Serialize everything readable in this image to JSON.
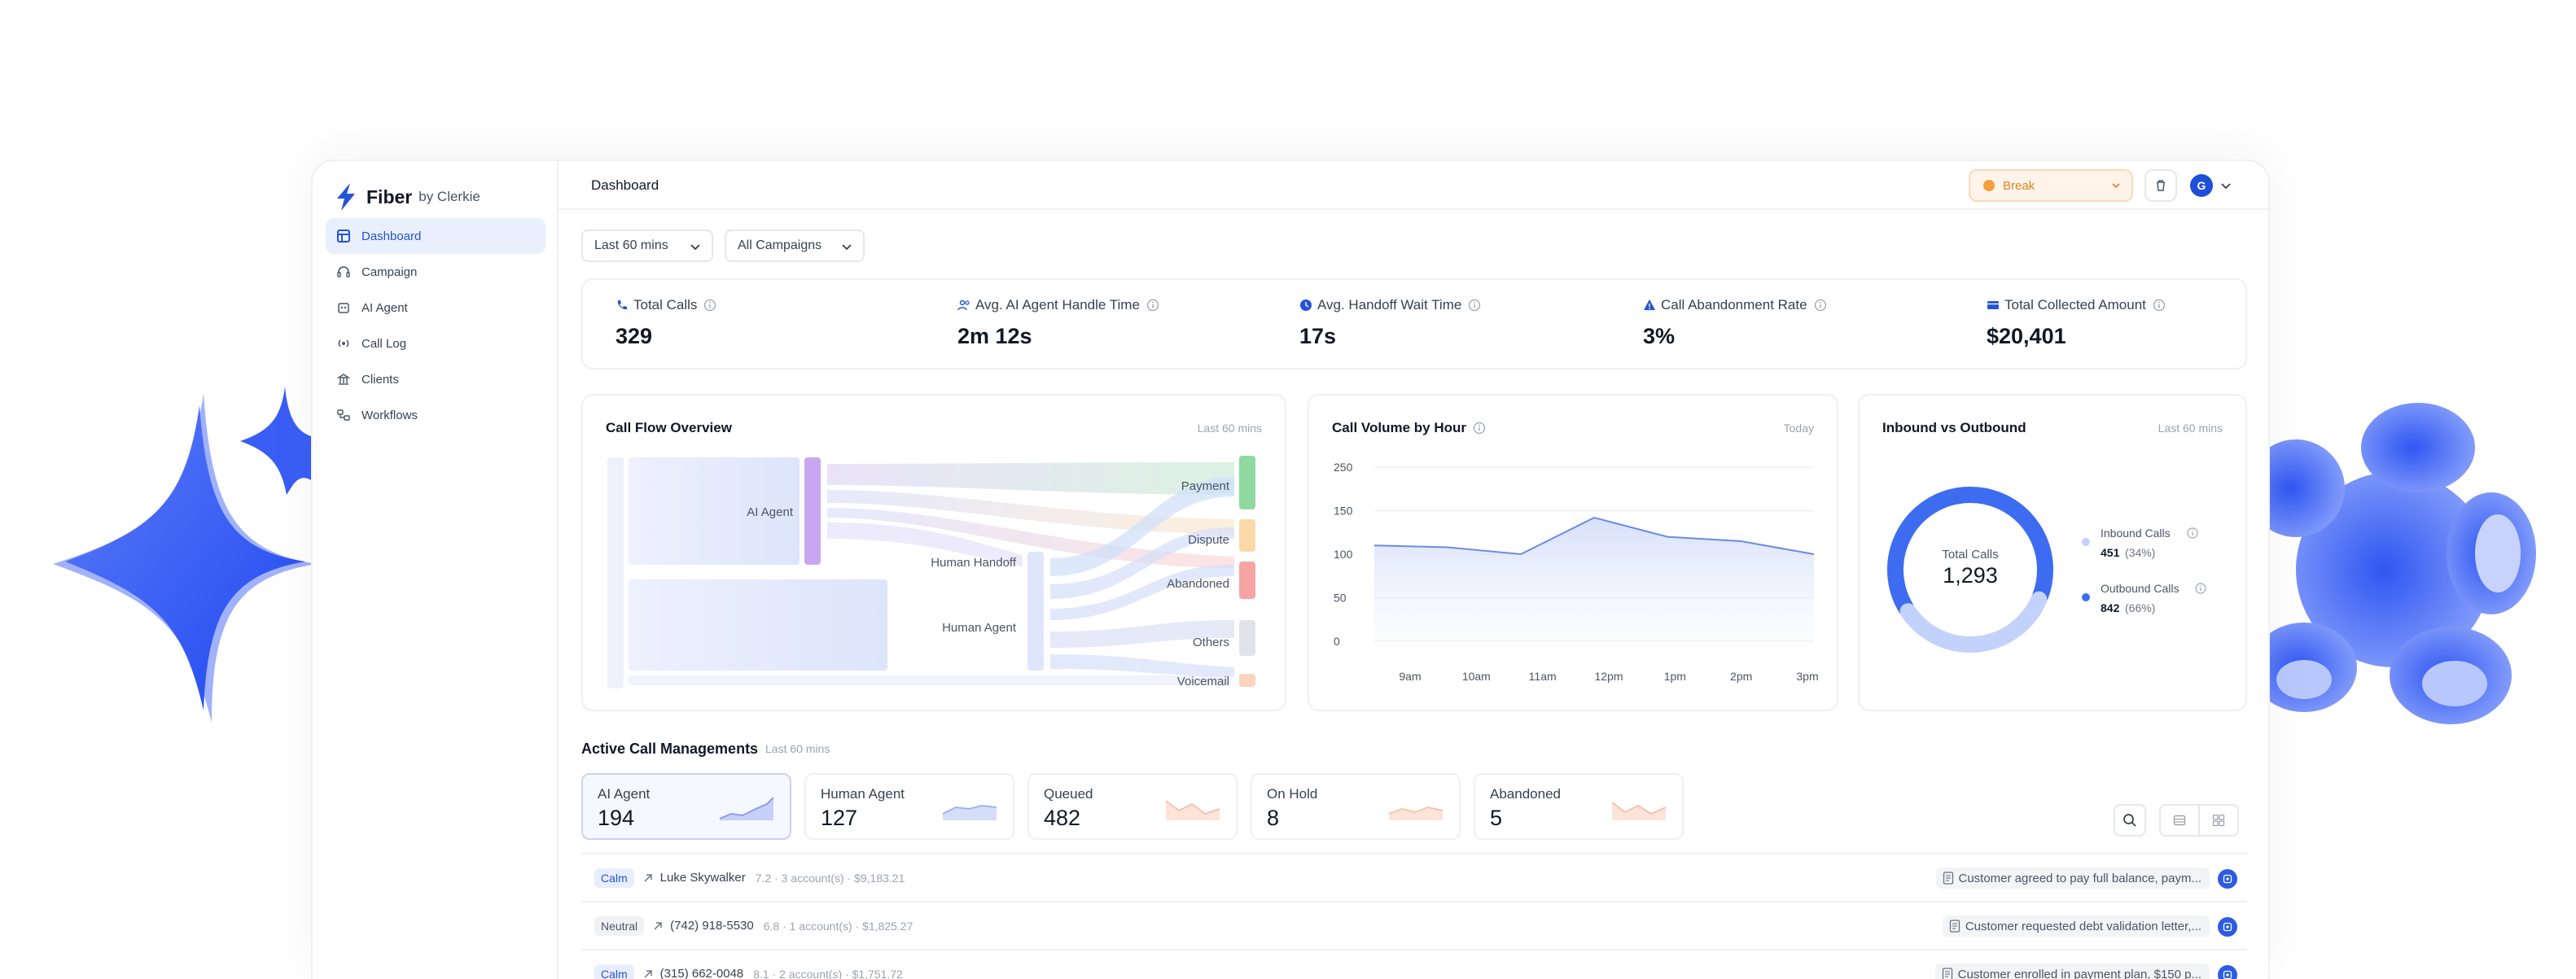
{
  "brand": {
    "name": "Fiber",
    "by": "by Clerkie"
  },
  "sidebar": {
    "items": [
      {
        "label": "Dashboard",
        "icon": "grid-icon",
        "active": true
      },
      {
        "label": "Campaign",
        "icon": "headset-icon"
      },
      {
        "label": "AI Agent",
        "icon": "bot-icon"
      },
      {
        "label": "Call Log",
        "icon": "broadcast-icon"
      },
      {
        "label": "Clients",
        "icon": "building-icon"
      },
      {
        "label": "Workflows",
        "icon": "workflow-icon"
      }
    ]
  },
  "header": {
    "title": "Dashboard",
    "status": "Break",
    "avatar_initial": "G"
  },
  "filters": {
    "time": "Last 60 mins",
    "campaign": "All Campaigns"
  },
  "kpis": [
    {
      "label": "Total Calls",
      "value": "329",
      "icon": "phone-icon"
    },
    {
      "label": "Avg. AI Agent Handle Time",
      "value": "2m 12s",
      "icon": "users-icon"
    },
    {
      "label": "Avg. Handoff Wait Time",
      "value": "17s",
      "icon": "clock-icon"
    },
    {
      "label": "Call Abandonment Rate",
      "value": "3%",
      "icon": "warning-icon"
    },
    {
      "label": "Total Collected Amount",
      "value": "$20,401",
      "icon": "card-icon"
    }
  ],
  "flow": {
    "title": "Call Flow Overview",
    "range": "Last 60 mins",
    "sources": [
      "AI Agent",
      "Human Handoff",
      "Human Agent"
    ],
    "outcomes": [
      "Payment",
      "Dispute",
      "Abandoned",
      "Others",
      "Voicemail"
    ],
    "colors": {
      "payment": "#8fd9a0",
      "dispute": "#fcd9a8",
      "abandoned": "#f7a4a4",
      "others": "#e1e3e8",
      "voicemail": "#fcd3bd"
    }
  },
  "volume": {
    "title": "Call Volume by Hour",
    "range": "Today",
    "chart_data": {
      "type": "area",
      "x": [
        "9am",
        "10am",
        "11am",
        "12pm",
        "1pm",
        "2pm",
        "3pm"
      ],
      "yticks": [
        250,
        150,
        100,
        50,
        0
      ],
      "ylim": [
        0,
        250
      ],
      "series": [
        {
          "values": [
            110,
            108,
            100,
            142,
            120,
            115,
            100
          ],
          "color": "#6b8be6"
        }
      ],
      "grid": true
    }
  },
  "inout": {
    "title": "Inbound vs Outbound",
    "range": "Last 60 mins",
    "center_label": "Total Calls",
    "center_value": "1,293",
    "chart_data": {
      "type": "pie",
      "categories": [
        "Inbound Calls",
        "Outbound Calls"
      ],
      "values": [
        451,
        842
      ],
      "colors": [
        "#c2d2fb",
        "#3d6cf0"
      ]
    },
    "legend": [
      {
        "label": "Inbound Calls",
        "value": "451",
        "pct": "(34%)",
        "color": "#c2d2fb"
      },
      {
        "label": "Outbound Calls",
        "value": "842",
        "pct": "(66%)",
        "color": "#3d6cf0"
      }
    ]
  },
  "active": {
    "title": "Active Call Managements",
    "range": "Last 60 mins",
    "cards": [
      {
        "label": "AI Agent",
        "value": "194",
        "color": "#8b9ef0"
      },
      {
        "label": "Human Agent",
        "value": "127",
        "color": "#9db4f5"
      },
      {
        "label": "Queued",
        "value": "482",
        "color": "#f6c1ae"
      },
      {
        "label": "On Hold",
        "value": "8",
        "color": "#f6c1ae"
      },
      {
        "label": "Abandoned",
        "value": "5",
        "color": "#f6c1ae"
      }
    ]
  },
  "rows": [
    {
      "mood": "Calm",
      "caller": "Luke Skywalker",
      "meta": "7.2 · 3 account(s) · $9,183.21",
      "summary": "Customer agreed to pay full balance, paym..."
    },
    {
      "mood": "Neutral",
      "caller": "(742) 918-5530",
      "meta": "6.8 · 1 account(s) · $1,825.27",
      "summary": "Customer requested debt validation letter,..."
    },
    {
      "mood": "Calm",
      "caller": "(315) 662-0048",
      "meta": "8.1 · 2 account(s) · $1,751.72",
      "summary": "Customer enrolled in payment plan, $150 p..."
    }
  ]
}
